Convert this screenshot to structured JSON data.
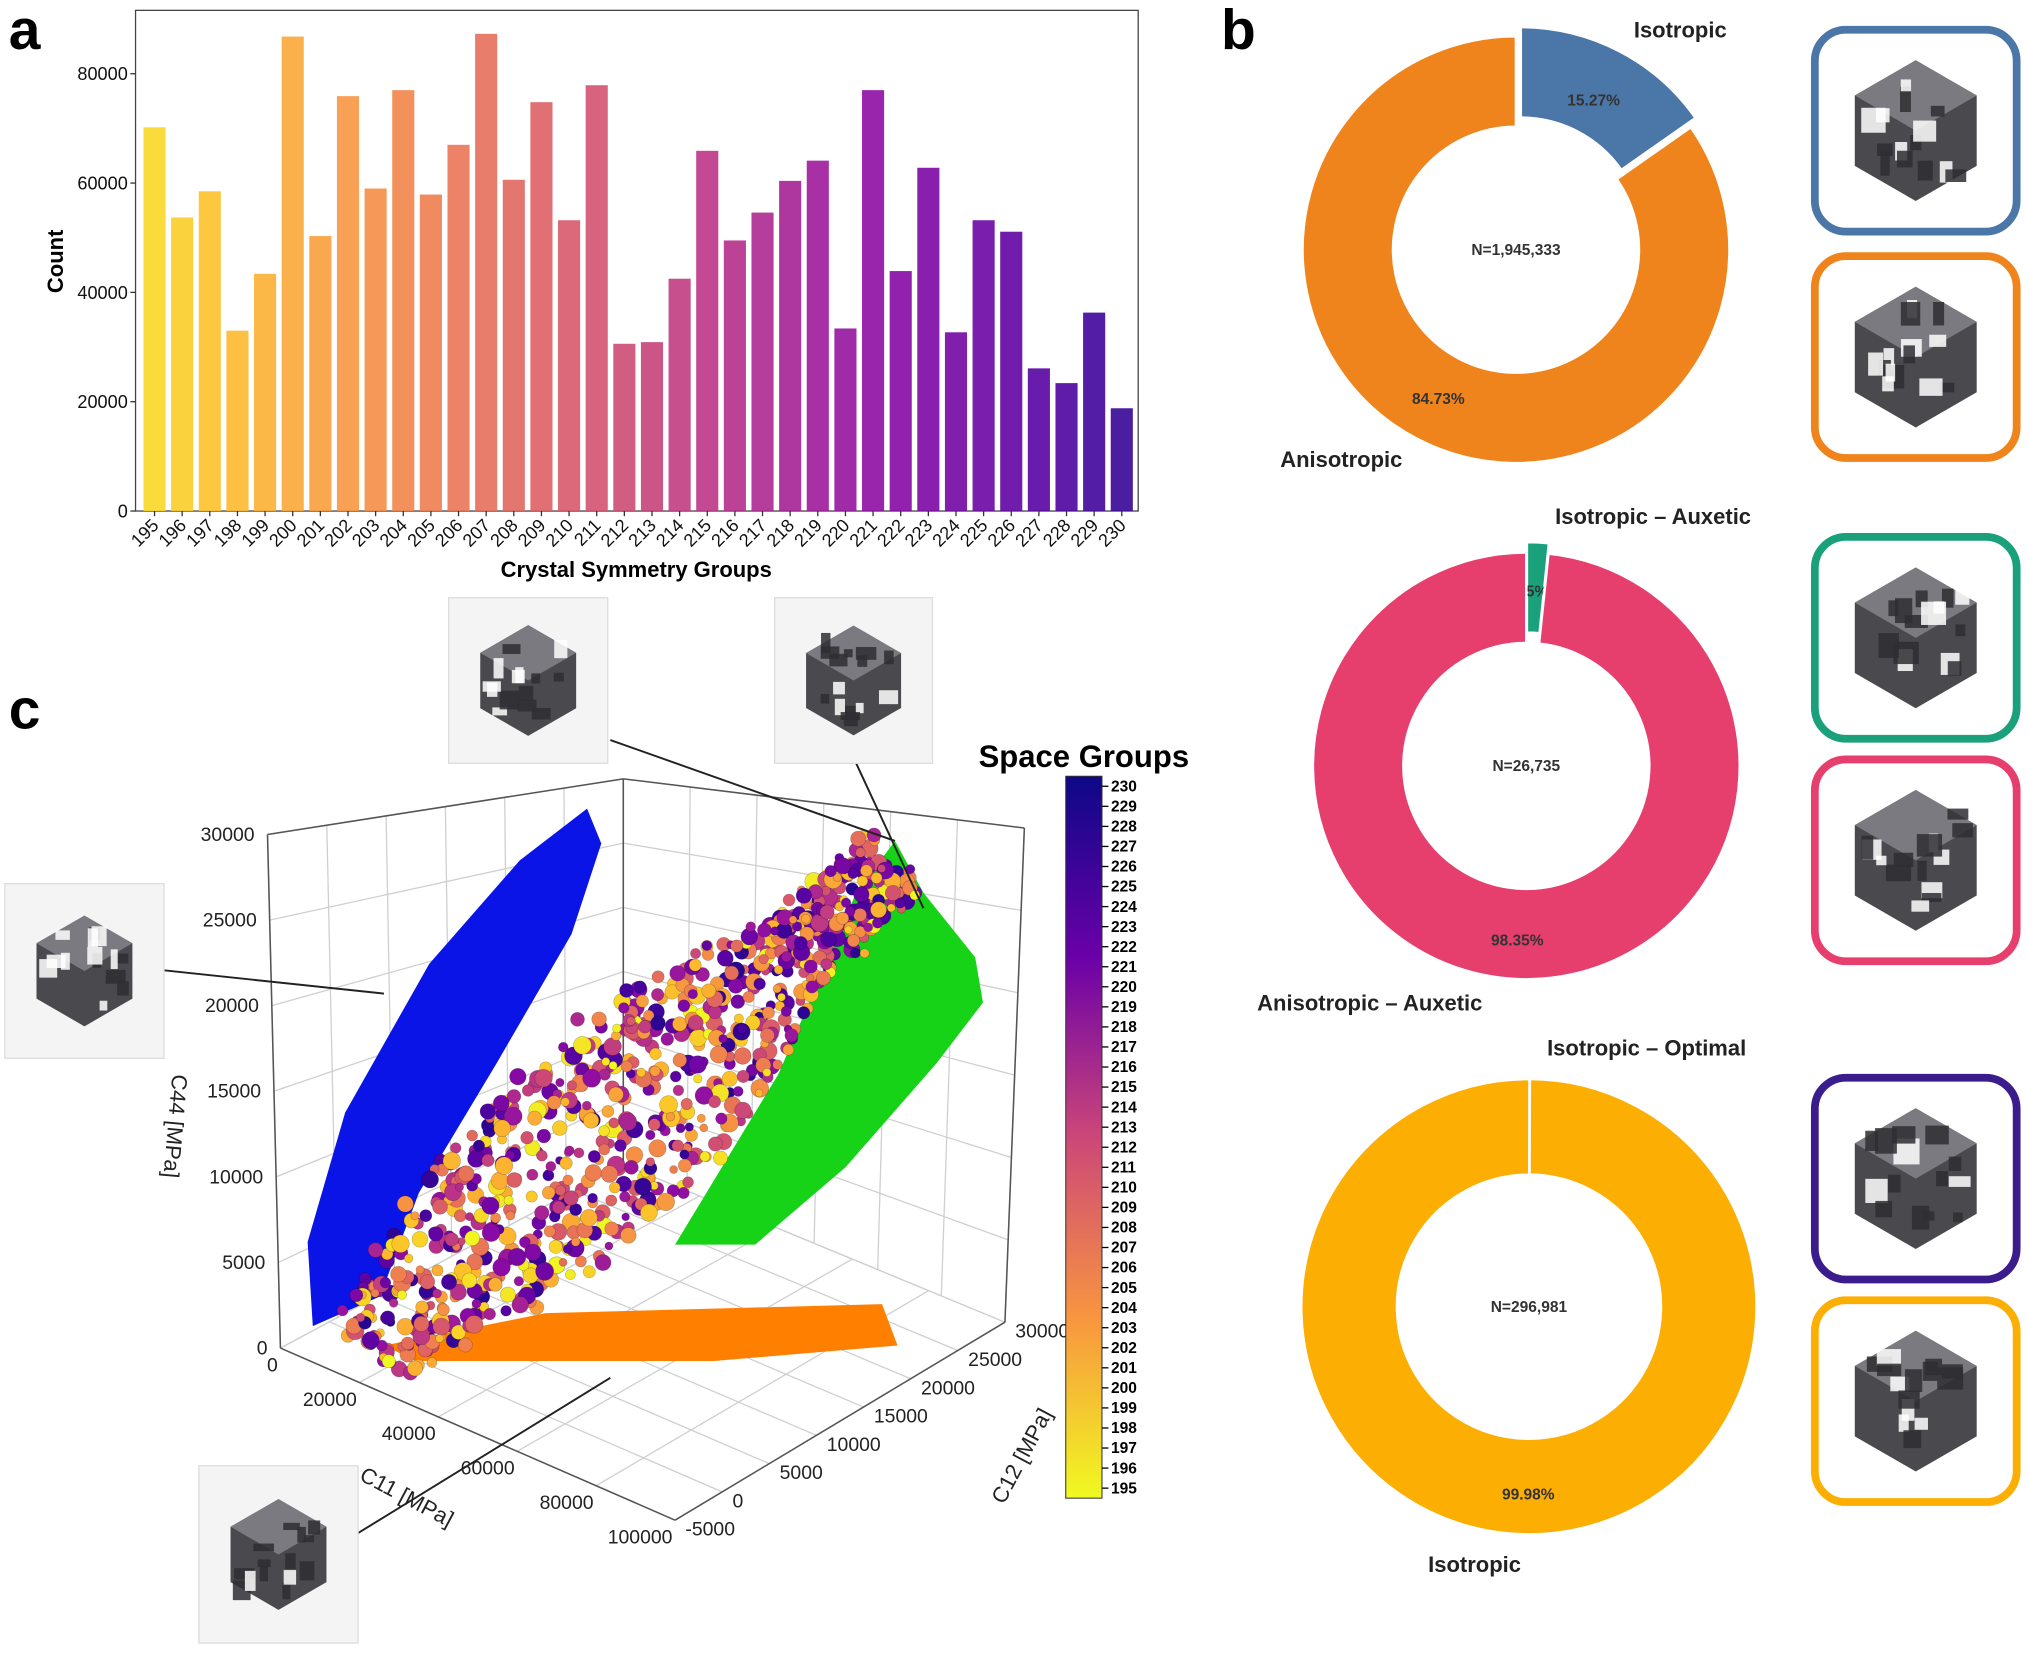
{
  "panels": {
    "a": "a",
    "b": "b",
    "c": "c"
  },
  "chart_data": [
    {
      "type": "bar",
      "panel": "a",
      "xlabel": "Crystal Symmetry Groups",
      "ylabel": "Count",
      "ylim": [
        0,
        92000
      ],
      "yticks": [
        0,
        20000,
        40000,
        60000,
        80000
      ],
      "colormap": "plasma (reversed, yellow to dark blue)",
      "grid": false,
      "categories": [
        "195",
        "196",
        "197",
        "198",
        "199",
        "200",
        "201",
        "202",
        "203",
        "204",
        "205",
        "206",
        "207",
        "208",
        "209",
        "210",
        "211",
        "212",
        "213",
        "214",
        "215",
        "216",
        "217",
        "218",
        "219",
        "220",
        "221",
        "222",
        "223",
        "224",
        "225",
        "226",
        "227",
        "228",
        "229",
        "230"
      ],
      "values": [
        70200,
        53700,
        58500,
        33000,
        43400,
        86800,
        50300,
        75900,
        59000,
        77000,
        57900,
        67000,
        87300,
        60600,
        74800,
        53200,
        77900,
        30600,
        30900,
        42500,
        65900,
        49500,
        54600,
        60400,
        64100,
        33400,
        77000,
        43900,
        62800,
        32700,
        53200,
        51100,
        26100,
        23400,
        36300,
        18800
      ]
    },
    {
      "type": "pie",
      "panel": "b",
      "donut": true,
      "center_label": "N=1,945,333",
      "slices": [
        {
          "name": "Isotropic",
          "value": 15.27,
          "label": "15.27%",
          "color": "#4a76a8",
          "exploded": true
        },
        {
          "name": "Anisotropic",
          "value": 84.73,
          "label": "84.73%",
          "color": "#f0841c"
        }
      ]
    },
    {
      "type": "pie",
      "panel": "b",
      "donut": true,
      "center_label": "N=26,735",
      "slices": [
        {
          "name": "Isotropic – Auxetic",
          "value": 1.65,
          "label": "1.65%",
          "color": "#1aa07a",
          "exploded": true
        },
        {
          "name": "Anisotropic – Auxetic",
          "value": 98.35,
          "label": "98.35%",
          "color": "#e63e6d"
        }
      ]
    },
    {
      "type": "pie",
      "panel": "b",
      "donut": true,
      "center_label": "N=296,981",
      "slices": [
        {
          "name": "Isotropic – Optimal",
          "value": 0.02,
          "label": "0.02%",
          "color": "#3b1c8c"
        },
        {
          "name": "Isotropic",
          "value": 99.98,
          "label": "99.98%",
          "color": "#fcae03"
        }
      ]
    },
    {
      "type": "scatter",
      "panel": "c",
      "projection": "3d",
      "xlabel": "C11 [MPa]",
      "ylabel": "C12 [MPa]",
      "zlabel": "C44 [MPa]",
      "xticks": [
        "0",
        "20000",
        "40000",
        "60000",
        "80000",
        "100000"
      ],
      "yticks": [
        "-5000",
        "0",
        "5000",
        "10000",
        "15000",
        "20000",
        "25000",
        "30000"
      ],
      "zticks": [
        "0",
        "5000",
        "10000",
        "15000",
        "20000",
        "25000",
        "30000"
      ],
      "xlim": [
        0,
        100000
      ],
      "ylim": [
        -5000,
        30000
      ],
      "zlim": [
        0,
        30000
      ],
      "grid": true,
      "projections": [
        {
          "plane": "C44 vs C12 (back wall)",
          "color": "#0a14e6"
        },
        {
          "plane": "C44 vs C11 (side wall)",
          "color": "#17d317"
        },
        {
          "plane": "C11 vs C12 (floor)",
          "color": "#ff8000"
        }
      ],
      "colorbar": {
        "title": "Space Groups",
        "labels": [
          "230",
          "229",
          "228",
          "227",
          "226",
          "225",
          "224",
          "223",
          "222",
          "221",
          "220",
          "219",
          "218",
          "217",
          "216",
          "215",
          "214",
          "213",
          "212",
          "211",
          "210",
          "209",
          "208",
          "207",
          "206",
          "205",
          "204",
          "203",
          "202",
          "201",
          "200",
          "199",
          "198",
          "197",
          "196",
          "195"
        ]
      }
    }
  ],
  "thumbnails": [
    {
      "border": "#4a76a8"
    },
    {
      "border": "#f0841c"
    },
    {
      "border": "#1aa07a"
    },
    {
      "border": "#e63e6d"
    },
    {
      "border": "#3b1c8c"
    },
    {
      "border": "#fcae03"
    }
  ]
}
